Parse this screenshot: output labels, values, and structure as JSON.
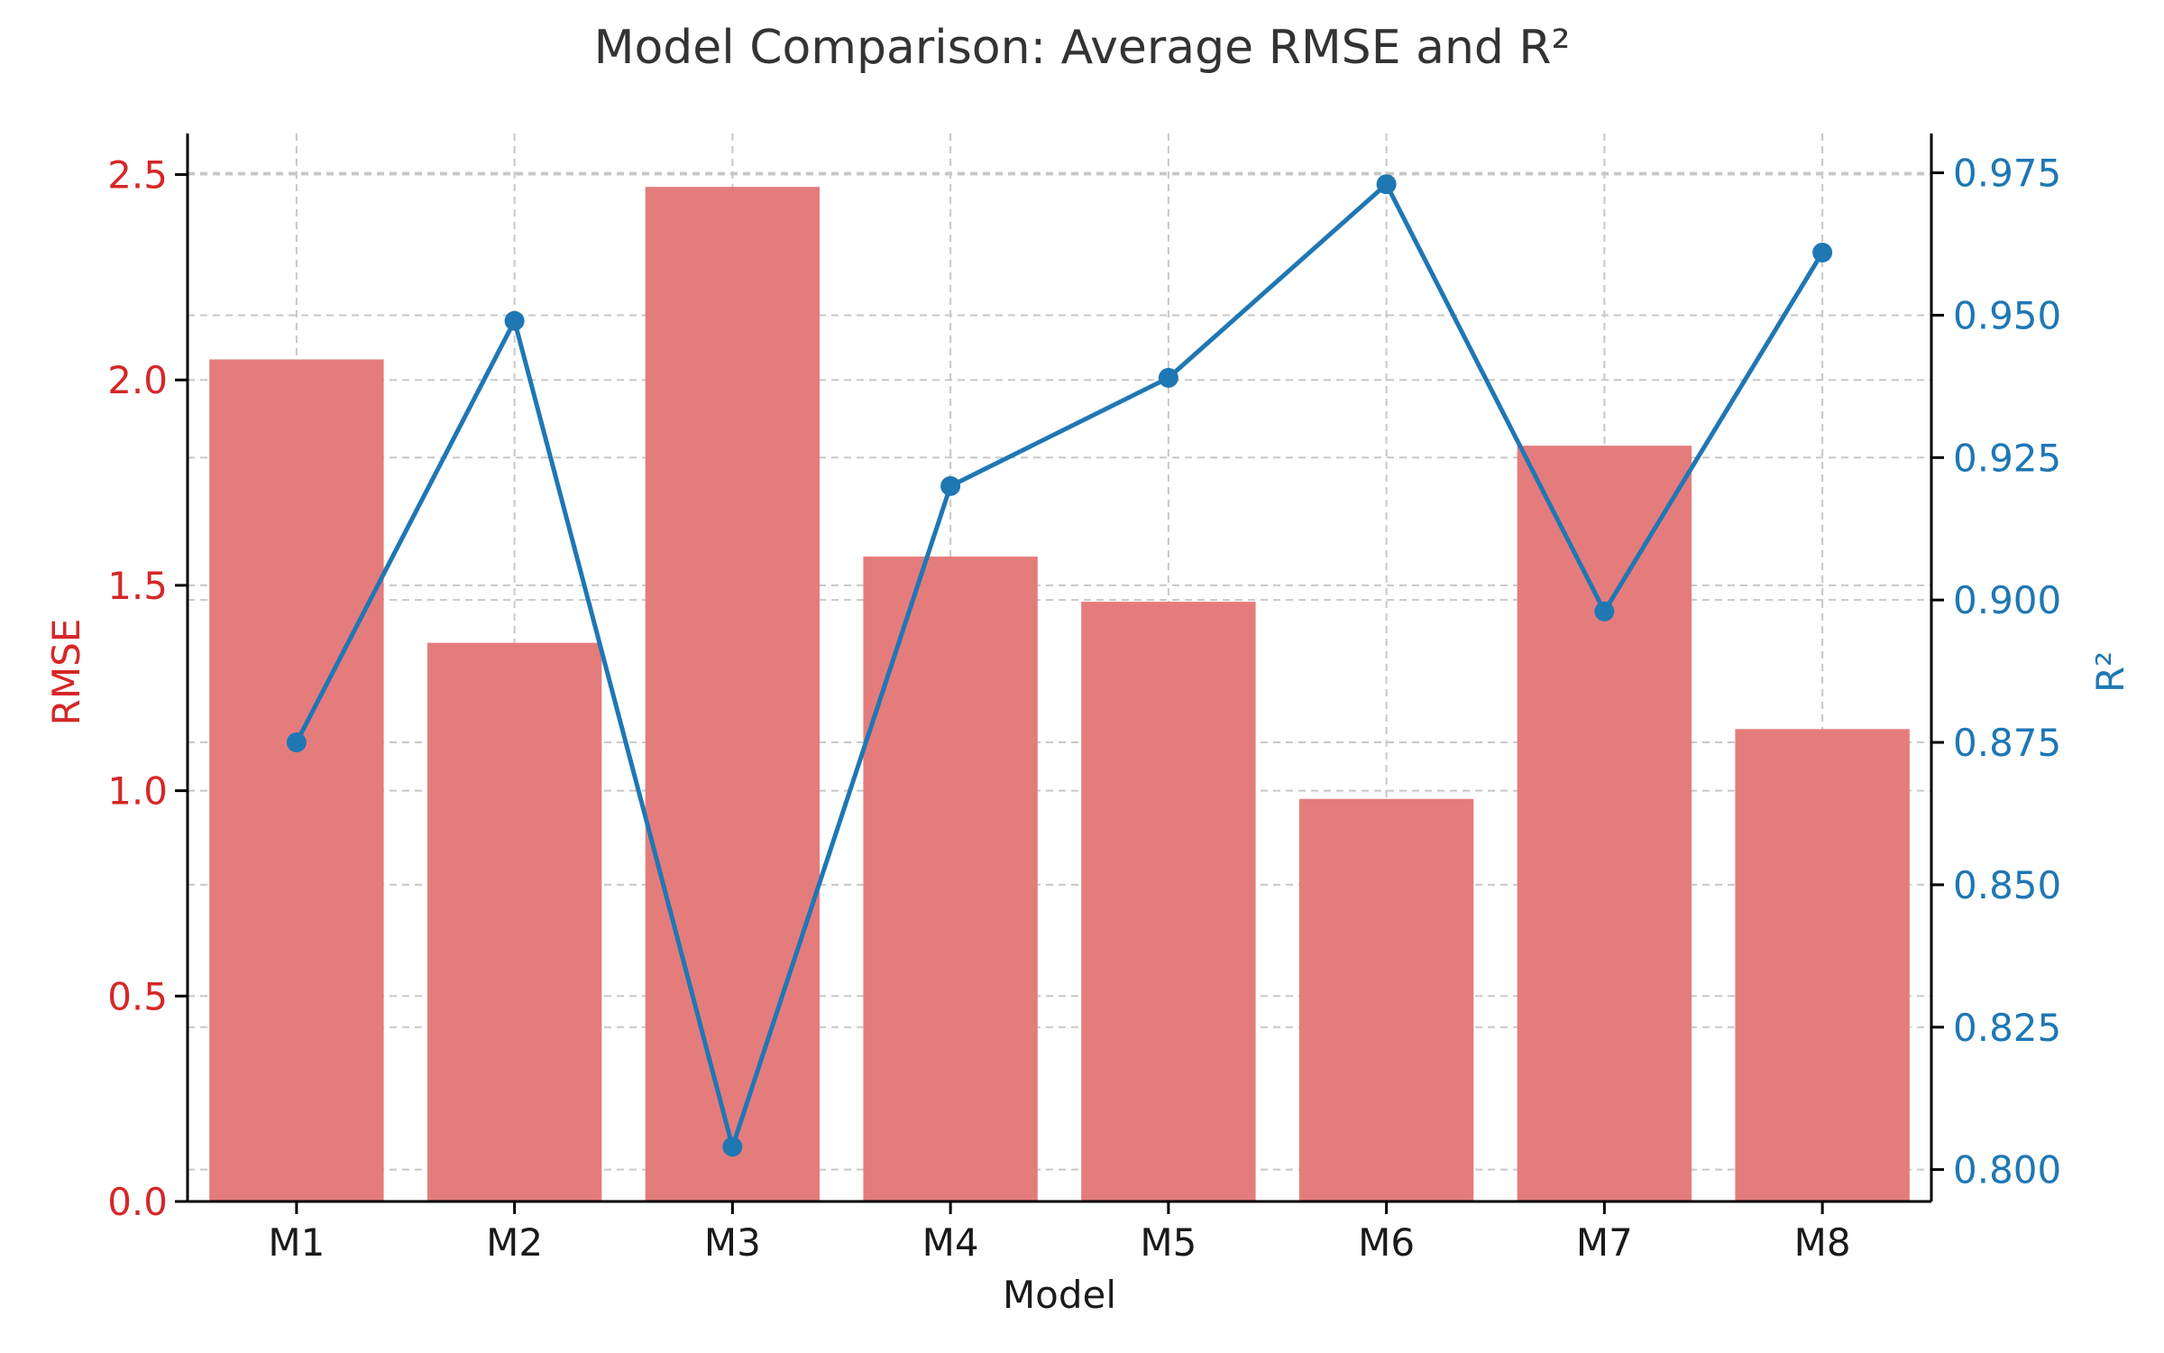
{
  "chart_data": {
    "type": "bar",
    "title": "Model Comparison: Average RMSE and R²",
    "xlabel": "Model",
    "ylabel": "RMSE",
    "y2label": "R²",
    "categories": [
      "M1",
      "M2",
      "M3",
      "M4",
      "M5",
      "M6",
      "M7",
      "M8"
    ],
    "series": [
      {
        "name": "RMSE",
        "type": "bar",
        "axis": "left",
        "color": "#e57c7c",
        "values": [
          2.05,
          1.36,
          2.47,
          1.57,
          1.46,
          0.98,
          1.84,
          1.15
        ]
      },
      {
        "name": "R²",
        "type": "line",
        "axis": "right",
        "color": "#1f77b4",
        "values": [
          0.875,
          0.949,
          0.804,
          0.92,
          0.939,
          0.973,
          0.898,
          0.961
        ]
      }
    ],
    "ylim": [
      0,
      2.6
    ],
    "yticks": [
      "0.0",
      "0.5",
      "1.0",
      "1.5",
      "2.0",
      "2.5"
    ],
    "y2lim": [
      0.7944,
      0.9819
    ],
    "y2ticks": [
      "0.800",
      "0.825",
      "0.850",
      "0.875",
      "0.900",
      "0.925",
      "0.950",
      "0.975"
    ],
    "left_axis_color": "#d62728",
    "right_axis_color": "#1f77b4",
    "grid": true
  }
}
